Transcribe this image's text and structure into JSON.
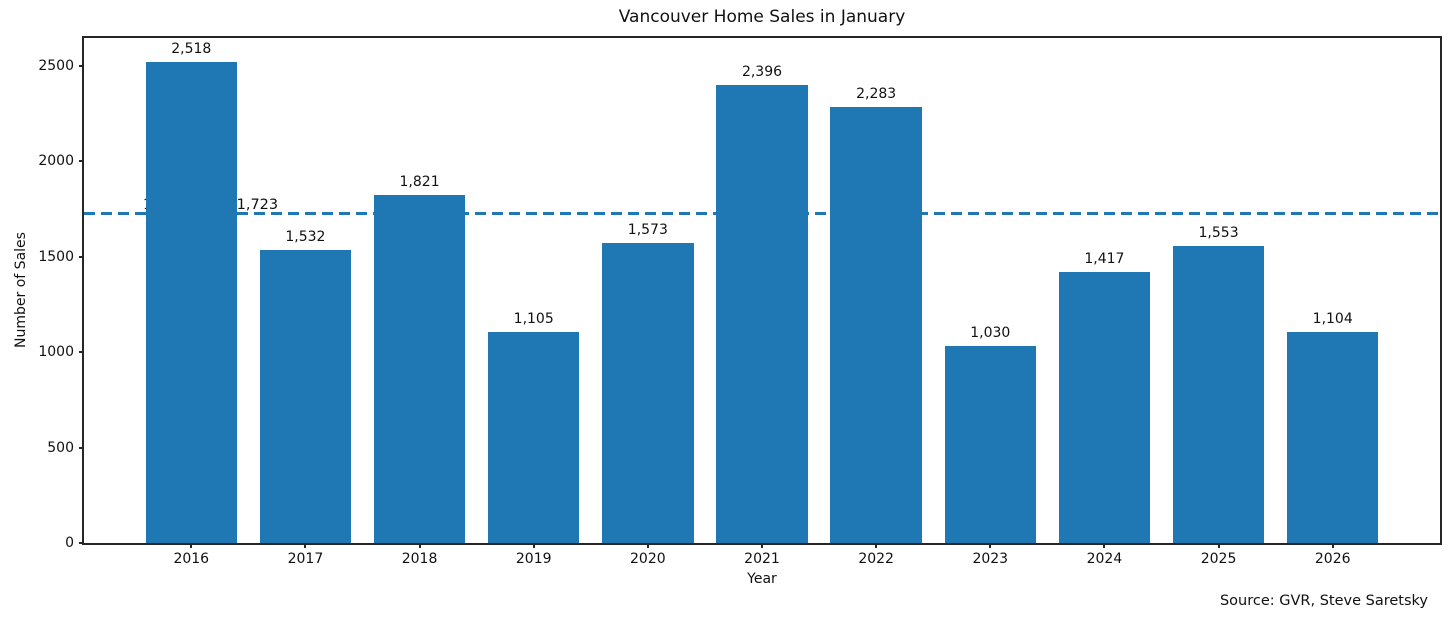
{
  "chart_data": {
    "type": "bar",
    "title": "Vancouver Home Sales in January",
    "xlabel": "Year",
    "ylabel": "Number of Sales",
    "categories": [
      "2016",
      "2017",
      "2018",
      "2019",
      "2020",
      "2021",
      "2022",
      "2023",
      "2024",
      "2025",
      "2026"
    ],
    "values": [
      2518,
      1532,
      1821,
      1105,
      1573,
      2396,
      2283,
      1030,
      1417,
      1553,
      1104
    ],
    "value_labels": [
      "2,518",
      "1,532",
      "1,821",
      "1,105",
      "1,573",
      "2,396",
      "2,283",
      "1,030",
      "1,417",
      "1,553",
      "1,104"
    ],
    "ylim": [
      0,
      2644
    ],
    "yticks": [
      0,
      500,
      1000,
      1500,
      2000,
      2500
    ],
    "ytick_labels": [
      "0",
      "500",
      "1000",
      "1500",
      "2000",
      "2500"
    ],
    "grid": false,
    "legend_position": "none",
    "bar_color": "#1f77b4",
    "avg_line": {
      "value": 1723,
      "label": "10-Year Avg: 1,723",
      "color": "#1f77b4",
      "style": "dashed"
    },
    "source_note": "Source: GVR, Steve Saretsky"
  }
}
